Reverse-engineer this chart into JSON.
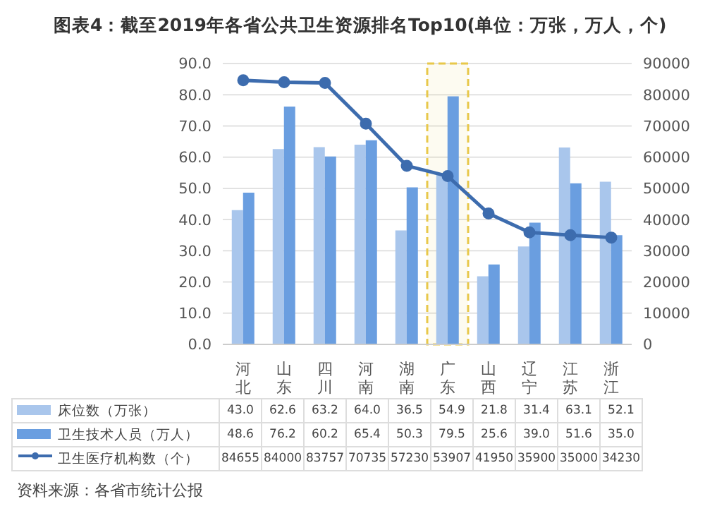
{
  "chart_data": {
    "type": "bar",
    "title": "图表4：截至2019年各省公共卫生资源排名Top10(单位：万张，万人，个)",
    "categories": [
      "河北",
      "山东",
      "四川",
      "河南",
      "湖南",
      "广东",
      "山西",
      "辽宁",
      "江苏",
      "浙江"
    ],
    "series": [
      {
        "name": "床位数（万张）",
        "color": "#a9c6ec",
        "values": [
          43.0,
          62.6,
          63.2,
          64.0,
          36.5,
          54.9,
          21.8,
          31.4,
          63.1,
          52.1
        ],
        "value_labels": [
          "43.0",
          "62.6",
          "63.2",
          "64.0",
          "36.5",
          "54.9",
          "21.8",
          "31.4",
          "63.1",
          "52.1"
        ]
      },
      {
        "name": "卫生技术人员（万人）",
        "color": "#6a9ee0",
        "values": [
          48.6,
          76.2,
          60.2,
          65.4,
          50.3,
          79.5,
          25.6,
          39.0,
          51.6,
          35.0
        ],
        "value_labels": [
          "48.6",
          "76.2",
          "60.2",
          "65.4",
          "50.3",
          "79.5",
          "25.6",
          "39.0",
          "51.6",
          "35.0"
        ]
      },
      {
        "name": "卫生医疗机构数（个）",
        "type": "line",
        "axis": "y2",
        "color": "#3d6cae",
        "values": [
          84655,
          84000,
          83757,
          70735,
          57230,
          53907,
          41950,
          35900,
          35000,
          34230
        ],
        "value_labels": [
          "84655",
          "84000",
          "83757",
          "70735",
          "57230",
          "53907",
          "41950",
          "35900",
          "35000",
          "34230"
        ]
      }
    ],
    "ylim": [
      0,
      90
    ],
    "yticks": [
      {
        "value": 0,
        "label": "0.0"
      },
      {
        "value": 10,
        "label": "10.0"
      },
      {
        "value": 20,
        "label": "20.0"
      },
      {
        "value": 30,
        "label": "30.0"
      },
      {
        "value": 40,
        "label": "40.0"
      },
      {
        "value": 50,
        "label": "50.0"
      },
      {
        "value": 60,
        "label": "60.0"
      },
      {
        "value": 70,
        "label": "70.0"
      },
      {
        "value": 80,
        "label": "80.0"
      },
      {
        "value": 90,
        "label": "90.0"
      }
    ],
    "y2lim": [
      0,
      90000
    ],
    "y2ticks": [
      0,
      10000,
      20000,
      30000,
      40000,
      50000,
      60000,
      70000,
      80000,
      90000
    ],
    "bands": [
      {
        "axis": "x",
        "from": "广东",
        "to": "广东",
        "color": "#e8c84a"
      }
    ],
    "grid": "y",
    "legend": "bottom",
    "marker": "circle",
    "annotations": [
      "资料来源：各省市统计公报"
    ]
  }
}
